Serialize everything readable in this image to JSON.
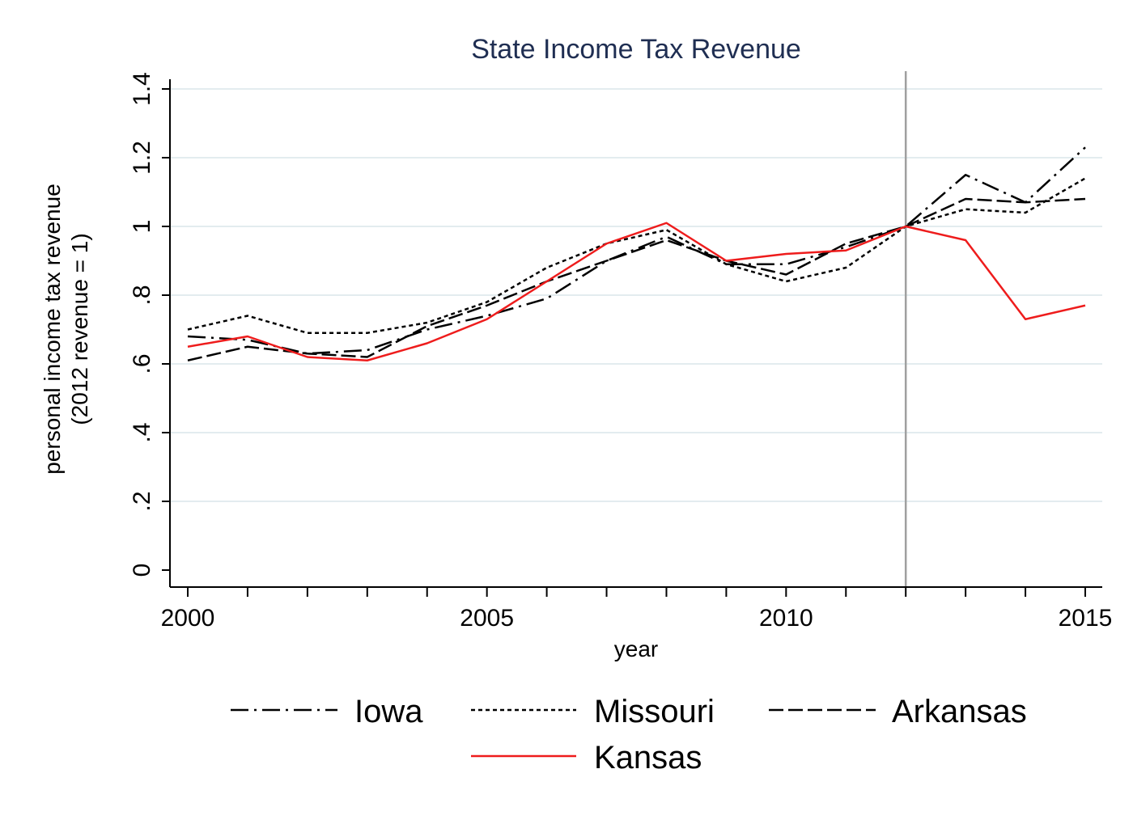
{
  "chart_data": {
    "type": "line",
    "title": "State Income Tax Revenue",
    "xlabel": "year",
    "ylabel": [
      "personal income tax revenue",
      "(2012 revenue = 1)"
    ],
    "x": [
      2000,
      2001,
      2002,
      2003,
      2004,
      2005,
      2006,
      2007,
      2008,
      2009,
      2010,
      2011,
      2012,
      2013,
      2014,
      2015
    ],
    "xlim": [
      2000,
      2015
    ],
    "ylim": [
      0,
      1.4
    ],
    "x_ticks": [
      2000,
      2005,
      2010,
      2015
    ],
    "x_tick_labels": [
      "2000",
      "2005",
      "2010",
      "2015"
    ],
    "y_ticks": [
      0,
      0.2,
      0.4,
      0.6,
      0.8,
      1,
      1.2,
      1.4
    ],
    "y_tick_labels": [
      "0",
      ".2",
      ".4",
      ".6",
      ".8",
      "1",
      "1.2",
      "1.4"
    ],
    "reference_line_x": 2012,
    "grid": "horizontal",
    "legend_position": "bottom",
    "series": [
      {
        "name": "Iowa",
        "style": "dash-dot",
        "color": "#000000",
        "values": [
          0.68,
          0.67,
          0.63,
          0.64,
          0.7,
          0.74,
          0.79,
          0.9,
          0.97,
          0.89,
          0.89,
          0.94,
          1.0,
          1.15,
          1.07,
          1.23
        ]
      },
      {
        "name": "Missouri",
        "style": "short-dash",
        "color": "#000000",
        "values": [
          0.7,
          0.74,
          0.69,
          0.69,
          0.72,
          0.78,
          0.88,
          0.95,
          0.99,
          0.89,
          0.84,
          0.88,
          1.0,
          1.05,
          1.04,
          1.14
        ]
      },
      {
        "name": "Arkansas",
        "style": "long-dash",
        "color": "#000000",
        "values": [
          0.61,
          0.65,
          0.63,
          0.62,
          0.71,
          0.77,
          0.84,
          0.9,
          0.96,
          0.9,
          0.86,
          0.95,
          1.0,
          1.08,
          1.07,
          1.08
        ]
      },
      {
        "name": "Kansas",
        "style": "solid",
        "color": "#ee1c1c",
        "values": [
          0.65,
          0.68,
          0.62,
          0.61,
          0.66,
          0.73,
          0.84,
          0.95,
          1.01,
          0.9,
          0.92,
          0.93,
          1.0,
          0.96,
          0.73,
          0.77
        ]
      }
    ]
  }
}
